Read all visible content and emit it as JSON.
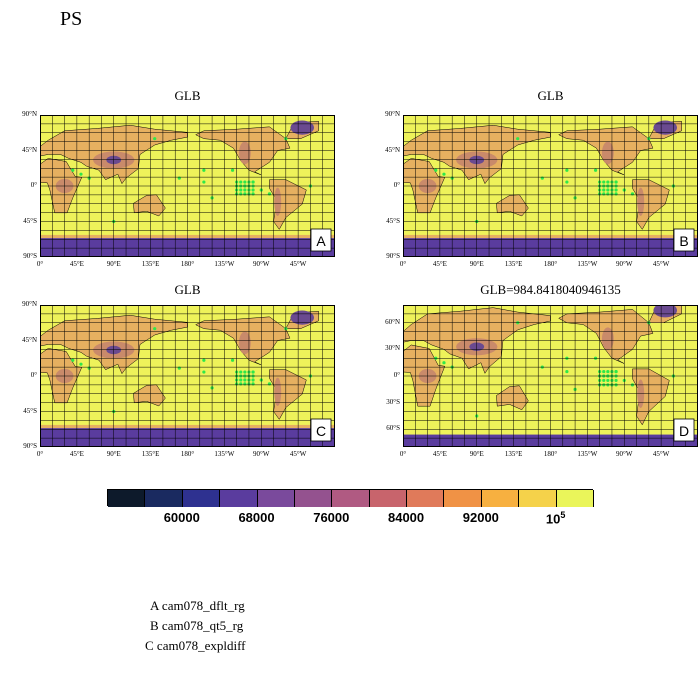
{
  "title": "PS",
  "panels": [
    {
      "id": "A",
      "title": "GLB",
      "letter": "A",
      "lat_ticks": [
        "90°N",
        "45°N",
        "0°",
        "45°S",
        "90°S"
      ],
      "lon_ticks": [
        "0°",
        "45°E",
        "90°E",
        "135°E",
        "180°",
        "135°W",
        "90°W",
        "45°W"
      ]
    },
    {
      "id": "B",
      "title": "GLB",
      "letter": "B",
      "lat_ticks": [
        "90°N",
        "45°N",
        "0°",
        "45°S",
        "90°S"
      ],
      "lon_ticks": [
        "0°",
        "45°E",
        "90°E",
        "135°E",
        "180°",
        "135°W",
        "90°W",
        "45°W"
      ]
    },
    {
      "id": "C",
      "title": "GLB",
      "letter": "C",
      "lat_ticks": [
        "90°N",
        "45°N",
        "0°",
        "45°S",
        "90°S"
      ],
      "lon_ticks": [
        "0°",
        "45°E",
        "90°E",
        "135°E",
        "180°",
        "135°W",
        "90°W",
        "45°W"
      ]
    },
    {
      "id": "D",
      "title": "GLB=984.8418040946135",
      "letter": "D",
      "lat_ticks": [
        "60°N",
        "30°N",
        "0°",
        "30°S",
        "60°S"
      ],
      "lon_ticks": [
        "0°",
        "45°E",
        "90°E",
        "135°E",
        "180°",
        "135°W",
        "90°W",
        "45°W"
      ]
    }
  ],
  "colorbar": {
    "colors": [
      "#0d1a2b",
      "#1a2a60",
      "#2e3190",
      "#5a3c9e",
      "#7a4a9c",
      "#94528f",
      "#b05a82",
      "#c8646c",
      "#e07a5a",
      "#f09245",
      "#f7b040",
      "#f5d24a",
      "#eaf55a"
    ],
    "labels": [
      "60000",
      "68000",
      "76000",
      "84000",
      "92000",
      "10"
    ],
    "last_label_sup": "5"
  },
  "legend": [
    "A  cam078_dflt_rg",
    "B  cam078_qt5_rg",
    "C  cam078_expldiff"
  ],
  "map_colors": {
    "background": "#eef25a",
    "high_terrain": "#c98a6a",
    "mid_terrain": "#e6b060",
    "very_high": "#6a4a90",
    "antarctic": "#5a3c9e",
    "station": "#2ee84a",
    "grid": "#000000"
  }
}
